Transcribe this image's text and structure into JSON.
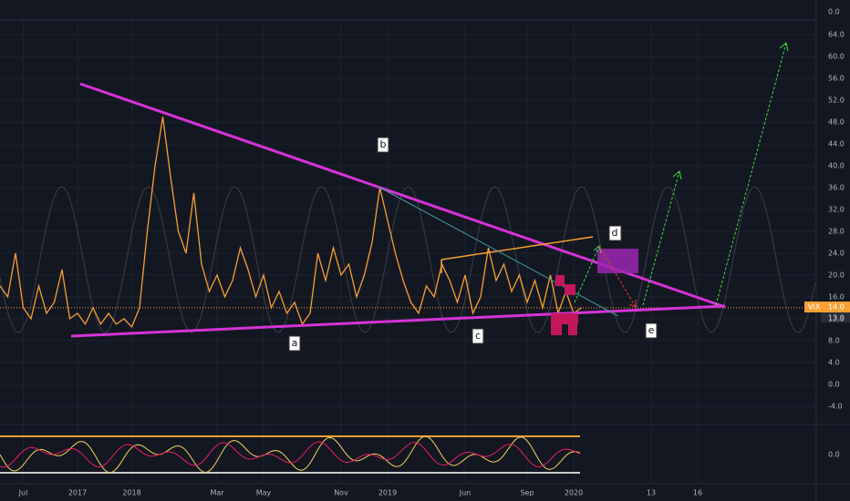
{
  "chart_data": {
    "type": "line",
    "categories": [
      null,
      null,
      null,
      "Jul",
      null,
      null,
      null,
      null,
      null,
      null,
      "2017",
      null,
      null,
      null,
      null,
      null,
      null,
      "2018",
      null,
      null,
      null,
      null,
      null,
      null,
      null,
      null,
      null,
      null,
      "Mar",
      null,
      null,
      null,
      null,
      null,
      "May",
      null,
      null,
      null,
      null,
      null,
      null,
      null,
      null,
      null,
      "Nov",
      null,
      null,
      null,
      null,
      null,
      "2019",
      null,
      null,
      null,
      null,
      null,
      null,
      null,
      null,
      null,
      "Jun",
      null,
      null,
      null,
      null,
      null,
      null,
      null,
      "Sep",
      null,
      null,
      null,
      null,
      null,
      "2020",
      null,
      null,
      null,
      null,
      null,
      null,
      null,
      null,
      null,
      "13",
      null,
      null,
      null,
      null,
      null,
      "16",
      null,
      null,
      null,
      null,
      null,
      null,
      null,
      null,
      null,
      null,
      null,
      null,
      null,
      null
    ],
    "series": [
      {
        "name": "VIX",
        "color": "#f7a034",
        "values": [
          18,
          16,
          24,
          14,
          12,
          18,
          13,
          15,
          21,
          12,
          13,
          11,
          14,
          11,
          13,
          11,
          12,
          10.5,
          14,
          28,
          40,
          49,
          38,
          28,
          24,
          35,
          22,
          17,
          20,
          16,
          19,
          25,
          21,
          16,
          20,
          14,
          17,
          13,
          15,
          11,
          13,
          24,
          19,
          25,
          20,
          22,
          16,
          20,
          26,
          36,
          30,
          24,
          19,
          15,
          13,
          18,
          16,
          22,
          19,
          15,
          20,
          13,
          16,
          25,
          19,
          22,
          17,
          20,
          15,
          19,
          14,
          20,
          13,
          17,
          13,
          14,
          null,
          null,
          null,
          null,
          null,
          null,
          null,
          null,
          null,
          null,
          null,
          null,
          null,
          null,
          null,
          null,
          null,
          null,
          null,
          null,
          null,
          null,
          null,
          null,
          null,
          null,
          null,
          null,
          null
        ]
      }
    ],
    "ylim": [
      -7.2,
      66.7
    ],
    "yticks": [
      {
        "value": 64,
        "label": "64.0"
      },
      {
        "value": 60,
        "label": "60.0"
      },
      {
        "value": 56,
        "label": "56.0"
      },
      {
        "value": 52,
        "label": "52.0"
      },
      {
        "value": 48,
        "label": "48.0"
      },
      {
        "value": 44,
        "label": "44.0"
      },
      {
        "value": 40,
        "label": "40.0"
      },
      {
        "value": 36,
        "label": "36.0"
      },
      {
        "value": 32,
        "label": "32.0"
      },
      {
        "value": 28,
        "label": "28.0"
      },
      {
        "value": 24,
        "label": "24.0"
      },
      {
        "value": 20,
        "label": "20.0"
      },
      {
        "value": 16,
        "label": "16.0"
      },
      {
        "value": 12,
        "label": "12.0"
      },
      {
        "value": 8,
        "label": "8.0"
      },
      {
        "value": 4,
        "label": "4.0"
      },
      {
        "value": 0,
        "label": "0.0"
      },
      {
        "value": -4,
        "label": "-4.0"
      }
    ],
    "grid": true,
    "last_price": {
      "symbol": "VIX",
      "value": 14.0,
      "label": "14.0"
    },
    "second_price": {
      "value": 13.9,
      "label": "13.9"
    },
    "top_pane_ticks": [
      {
        "value": 0,
        "label": "0.0"
      }
    ],
    "oscillator_ticks": [
      {
        "value": 0,
        "label": "0.0"
      }
    ],
    "annotations": [
      "a",
      "b",
      "c",
      "d",
      "e"
    ]
  }
}
